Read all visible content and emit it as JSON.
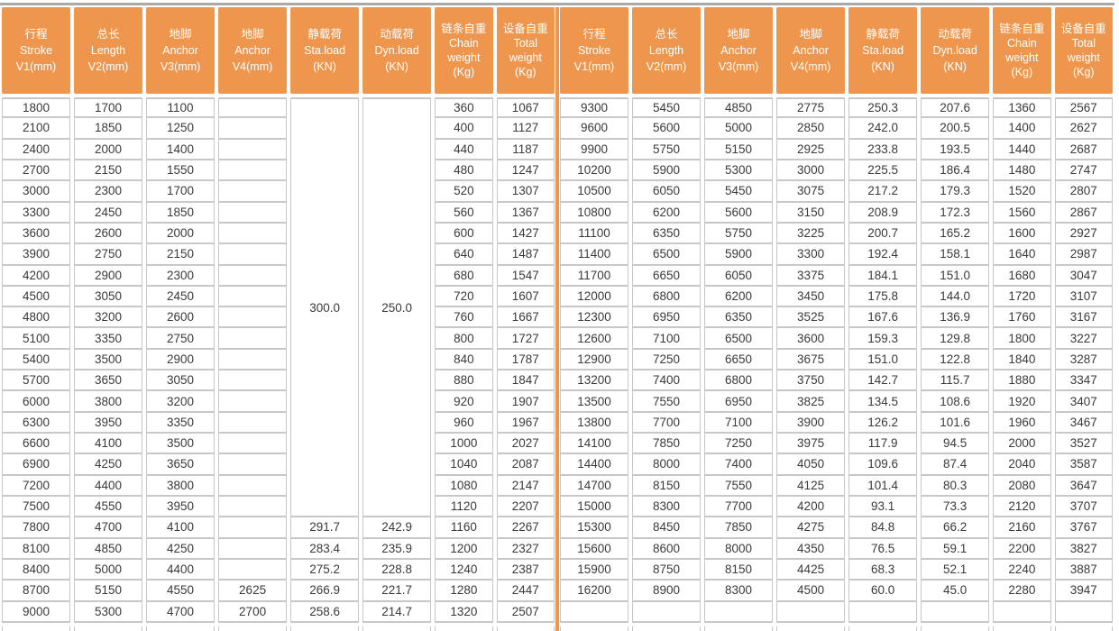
{
  "colors": {
    "header_orange": "#ef964e",
    "divider_orange": "#ef964e",
    "grid_line": "#c8c8c8",
    "top_rule_gray": "#a9a9a9",
    "cell_text": "#3a3a3a",
    "header_text": "#ffffff"
  },
  "table": {
    "column_headers": [
      {
        "lines": [
          "行程",
          "Stroke",
          "V1(mm)"
        ]
      },
      {
        "lines": [
          "总长",
          "Length",
          "V2(mm)"
        ]
      },
      {
        "lines": [
          "地脚",
          "Anchor",
          "V3(mm)"
        ]
      },
      {
        "lines": [
          "地脚",
          "Anchor",
          "V4(mm)"
        ]
      },
      {
        "lines": [
          "静载荷",
          "Sta.load",
          "(KN)"
        ]
      },
      {
        "lines": [
          "动载荷",
          "Dyn.load",
          "(KN)"
        ]
      },
      {
        "lines": [
          "链条自重",
          "Chain",
          "weight",
          "(Kg)"
        ]
      },
      {
        "lines": [
          "设备自重",
          "Total",
          "weight",
          "(Kg)"
        ]
      }
    ],
    "left": {
      "merged": {
        "sta_load": "300.0",
        "dyn_load": "250.0",
        "span_rows": 20
      },
      "rows": [
        [
          "1800",
          "1700",
          "1100",
          "",
          "",
          "",
          "360",
          "1067"
        ],
        [
          "2100",
          "1850",
          "1250",
          "",
          "",
          "",
          "400",
          "1127"
        ],
        [
          "2400",
          "2000",
          "1400",
          "",
          "",
          "",
          "440",
          "1187"
        ],
        [
          "2700",
          "2150",
          "1550",
          "",
          "",
          "",
          "480",
          "1247"
        ],
        [
          "3000",
          "2300",
          "1700",
          "",
          "",
          "",
          "520",
          "1307"
        ],
        [
          "3300",
          "2450",
          "1850",
          "",
          "",
          "",
          "560",
          "1367"
        ],
        [
          "3600",
          "2600",
          "2000",
          "",
          "",
          "",
          "600",
          "1427"
        ],
        [
          "3900",
          "2750",
          "2150",
          "",
          "",
          "",
          "640",
          "1487"
        ],
        [
          "4200",
          "2900",
          "2300",
          "",
          "",
          "",
          "680",
          "1547"
        ],
        [
          "4500",
          "3050",
          "2450",
          "",
          "",
          "",
          "720",
          "1607"
        ],
        [
          "4800",
          "3200",
          "2600",
          "",
          "",
          "",
          "760",
          "1667"
        ],
        [
          "5100",
          "3350",
          "2750",
          "",
          "",
          "",
          "800",
          "1727"
        ],
        [
          "5400",
          "3500",
          "2900",
          "",
          "",
          "",
          "840",
          "1787"
        ],
        [
          "5700",
          "3650",
          "3050",
          "",
          "",
          "",
          "880",
          "1847"
        ],
        [
          "6000",
          "3800",
          "3200",
          "",
          "",
          "",
          "920",
          "1907"
        ],
        [
          "6300",
          "3950",
          "3350",
          "",
          "",
          "",
          "960",
          "1967"
        ],
        [
          "6600",
          "4100",
          "3500",
          "",
          "",
          "",
          "1000",
          "2027"
        ],
        [
          "6900",
          "4250",
          "3650",
          "",
          "",
          "",
          "1040",
          "2087"
        ],
        [
          "7200",
          "4400",
          "3800",
          "",
          "",
          "",
          "1080",
          "2147"
        ],
        [
          "7500",
          "4550",
          "3950",
          "",
          "",
          "",
          "1120",
          "2207"
        ],
        [
          "7800",
          "4700",
          "4100",
          "",
          "291.7",
          "242.9",
          "1160",
          "2267"
        ],
        [
          "8100",
          "4850",
          "4250",
          "",
          "283.4",
          "235.9",
          "1200",
          "2327"
        ],
        [
          "8400",
          "5000",
          "4400",
          "",
          "275.2",
          "228.8",
          "1240",
          "2387"
        ],
        [
          "8700",
          "5150",
          "4550",
          "2625",
          "266.9",
          "221.7",
          "1280",
          "2447"
        ],
        [
          "9000",
          "5300",
          "4700",
          "2700",
          "258.6",
          "214.7",
          "1320",
          "2507"
        ]
      ]
    },
    "right": {
      "rows": [
        [
          "9300",
          "5450",
          "4850",
          "2775",
          "250.3",
          "207.6",
          "1360",
          "2567"
        ],
        [
          "9600",
          "5600",
          "5000",
          "2850",
          "242.0",
          "200.5",
          "1400",
          "2627"
        ],
        [
          "9900",
          "5750",
          "5150",
          "2925",
          "233.8",
          "193.5",
          "1440",
          "2687"
        ],
        [
          "10200",
          "5900",
          "5300",
          "3000",
          "225.5",
          "186.4",
          "1480",
          "2747"
        ],
        [
          "10500",
          "6050",
          "5450",
          "3075",
          "217.2",
          "179.3",
          "1520",
          "2807"
        ],
        [
          "10800",
          "6200",
          "5600",
          "3150",
          "208.9",
          "172.3",
          "1560",
          "2867"
        ],
        [
          "11100",
          "6350",
          "5750",
          "3225",
          "200.7",
          "165.2",
          "1600",
          "2927"
        ],
        [
          "11400",
          "6500",
          "5900",
          "3300",
          "192.4",
          "158.1",
          "1640",
          "2987"
        ],
        [
          "11700",
          "6650",
          "6050",
          "3375",
          "184.1",
          "151.0",
          "1680",
          "3047"
        ],
        [
          "12000",
          "6800",
          "6200",
          "3450",
          "175.8",
          "144.0",
          "1720",
          "3107"
        ],
        [
          "12300",
          "6950",
          "6350",
          "3525",
          "167.6",
          "136.9",
          "1760",
          "3167"
        ],
        [
          "12600",
          "7100",
          "6500",
          "3600",
          "159.3",
          "129.8",
          "1800",
          "3227"
        ],
        [
          "12900",
          "7250",
          "6650",
          "3675",
          "151.0",
          "122.8",
          "1840",
          "3287"
        ],
        [
          "13200",
          "7400",
          "6800",
          "3750",
          "142.7",
          "115.7",
          "1880",
          "3347"
        ],
        [
          "13500",
          "7550",
          "6950",
          "3825",
          "134.5",
          "108.6",
          "1920",
          "3407"
        ],
        [
          "13800",
          "7700",
          "7100",
          "3900",
          "126.2",
          "101.6",
          "1960",
          "3467"
        ],
        [
          "14100",
          "7850",
          "7250",
          "3975",
          "117.9",
          "94.5",
          "2000",
          "3527"
        ],
        [
          "14400",
          "8000",
          "7400",
          "4050",
          "109.6",
          "87.4",
          "2040",
          "3587"
        ],
        [
          "14700",
          "8150",
          "7550",
          "4125",
          "101.4",
          "80.3",
          "2080",
          "3647"
        ],
        [
          "15000",
          "8300",
          "7700",
          "4200",
          "93.1",
          "73.3",
          "2120",
          "3707"
        ],
        [
          "15300",
          "8450",
          "7850",
          "4275",
          "84.8",
          "66.2",
          "2160",
          "3767"
        ],
        [
          "15600",
          "8600",
          "8000",
          "4350",
          "76.5",
          "59.1",
          "2200",
          "3827"
        ],
        [
          "15900",
          "8750",
          "8150",
          "4425",
          "68.3",
          "52.1",
          "2240",
          "3887"
        ],
        [
          "16200",
          "8900",
          "8300",
          "4500",
          "60.0",
          "45.0",
          "2280",
          "3947"
        ],
        [
          "",
          "",
          "",
          "",
          "",
          "",
          "",
          ""
        ]
      ]
    }
  }
}
